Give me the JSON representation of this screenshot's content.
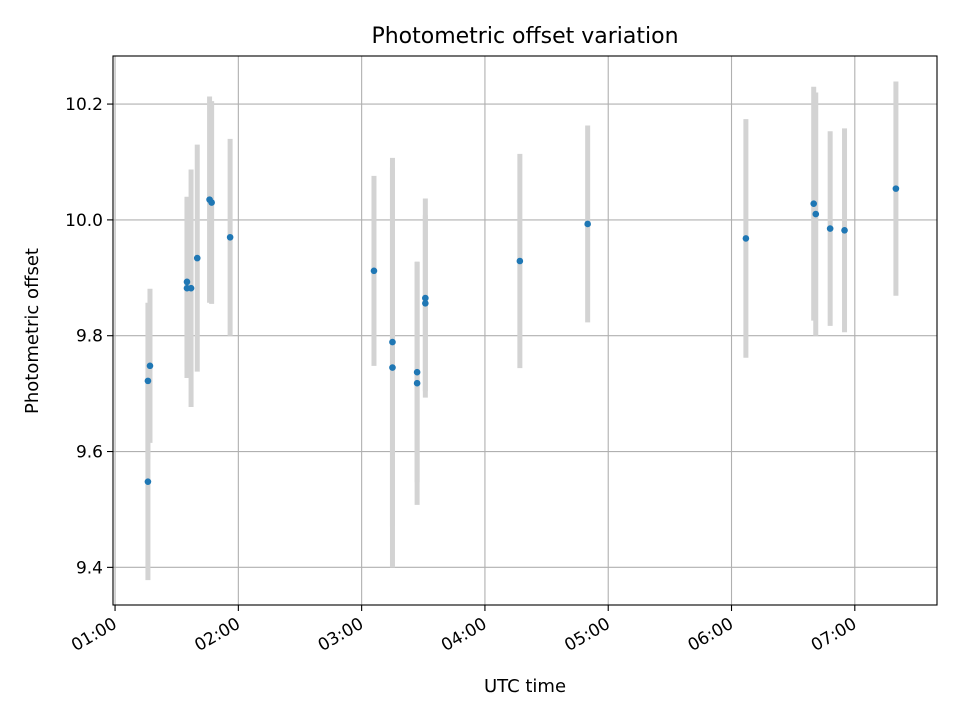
{
  "chart_data": {
    "type": "scatter",
    "title": "Photometric offset variation",
    "xlabel": "UTC time",
    "ylabel": "Photometric offset",
    "x_tick_labels": [
      "01:00",
      "02:00",
      "03:00",
      "04:00",
      "05:00",
      "06:00",
      "07:00"
    ],
    "x_tick_values": [
      "01:00",
      "02:00",
      "03:00",
      "04:00",
      "05:00",
      "06:00",
      "07:00"
    ],
    "y_tick_labels": [
      "9.4",
      "9.6",
      "9.8",
      "10.0",
      "10.2"
    ],
    "y_tick_values": [
      9.4,
      9.6,
      9.8,
      10.0,
      10.2
    ],
    "xlim": [
      "00:59",
      "07:40"
    ],
    "ylim": [
      9.335,
      10.283
    ],
    "grid": true,
    "point_color": "#1f77b4",
    "errorbar_color": "#d3d3d3",
    "points": [
      {
        "x": "01:16",
        "y": 9.548,
        "err": 0.17
      },
      {
        "x": "01:16",
        "y": 9.722,
        "err": 0.135
      },
      {
        "x": "01:17",
        "y": 9.748,
        "err": 0.133
      },
      {
        "x": "01:35",
        "y": 9.893,
        "err": 0.147
      },
      {
        "x": "01:35",
        "y": 9.882,
        "err": 0.155
      },
      {
        "x": "01:37",
        "y": 9.882,
        "err": 0.205
      },
      {
        "x": "01:40",
        "y": 9.934,
        "err": 0.196
      },
      {
        "x": "01:46",
        "y": 10.035,
        "err": 0.178
      },
      {
        "x": "01:47",
        "y": 10.03,
        "err": 0.175
      },
      {
        "x": "01:56",
        "y": 9.97,
        "err": 0.17
      },
      {
        "x": "03:06",
        "y": 9.912,
        "err": 0.164
      },
      {
        "x": "03:15",
        "y": 9.789,
        "err": 0.318
      },
      {
        "x": "03:15",
        "y": 9.745,
        "err": 0.345
      },
      {
        "x": "03:27",
        "y": 9.737,
        "err": 0.19
      },
      {
        "x": "03:27",
        "y": 9.718,
        "err": 0.21
      },
      {
        "x": "03:31",
        "y": 9.865,
        "err": 0.172
      },
      {
        "x": "03:31",
        "y": 9.856,
        "err": 0.152
      },
      {
        "x": "04:17",
        "y": 9.929,
        "err": 0.185
      },
      {
        "x": "04:50",
        "y": 9.993,
        "err": 0.17
      },
      {
        "x": "06:07",
        "y": 9.968,
        "err": 0.206
      },
      {
        "x": "06:40",
        "y": 10.028,
        "err": 0.202
      },
      {
        "x": "06:41",
        "y": 10.01,
        "err": 0.21
      },
      {
        "x": "06:48",
        "y": 9.985,
        "err": 0.168
      },
      {
        "x": "06:55",
        "y": 9.982,
        "err": 0.176
      },
      {
        "x": "07:20",
        "y": 10.054,
        "err": 0.185
      }
    ]
  }
}
